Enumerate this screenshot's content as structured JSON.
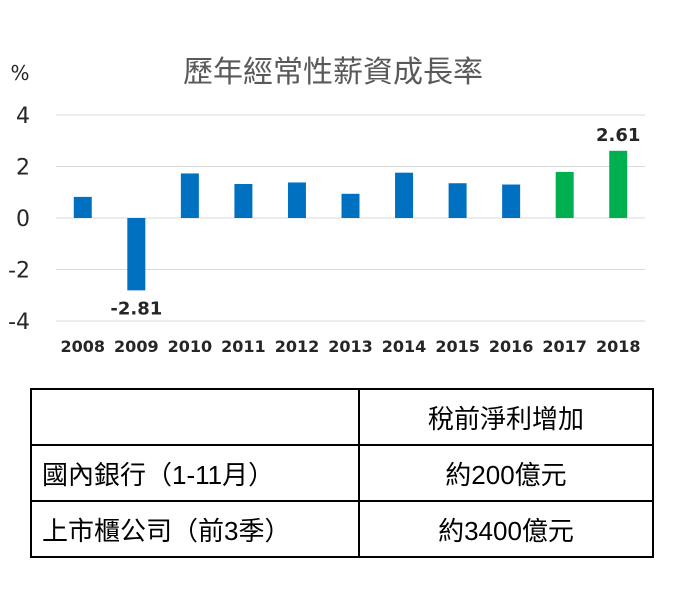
{
  "chart_data": {
    "type": "bar",
    "title": "歷年經常性薪資成長率",
    "ylabel": "%",
    "categories": [
      "2008",
      "2009",
      "2010",
      "2011",
      "2012",
      "2013",
      "2014",
      "2015",
      "2016",
      "2017",
      "2018"
    ],
    "values": [
      0.82,
      -2.81,
      1.73,
      1.32,
      1.38,
      0.94,
      1.76,
      1.35,
      1.3,
      1.79,
      2.61
    ],
    "data_labels": {
      "2009": "-2.81",
      "2018": "2.61"
    },
    "ylim": [
      -4,
      4
    ],
    "yticks": [
      "4",
      "2",
      "0",
      "-2",
      "-4"
    ],
    "ytick_values": [
      4,
      2,
      0,
      -2,
      -4
    ],
    "grid": true,
    "colors": {
      "default": "#0070c0",
      "highlight": "#00b050"
    },
    "highlight_categories": [
      "2017",
      "2018"
    ]
  },
  "table": {
    "header": [
      "",
      "稅前淨利增加"
    ],
    "rows": [
      [
        "國內銀行（1-11月）",
        "約200億元"
      ],
      [
        "上市櫃公司（前3季）",
        "約3400億元"
      ]
    ]
  }
}
